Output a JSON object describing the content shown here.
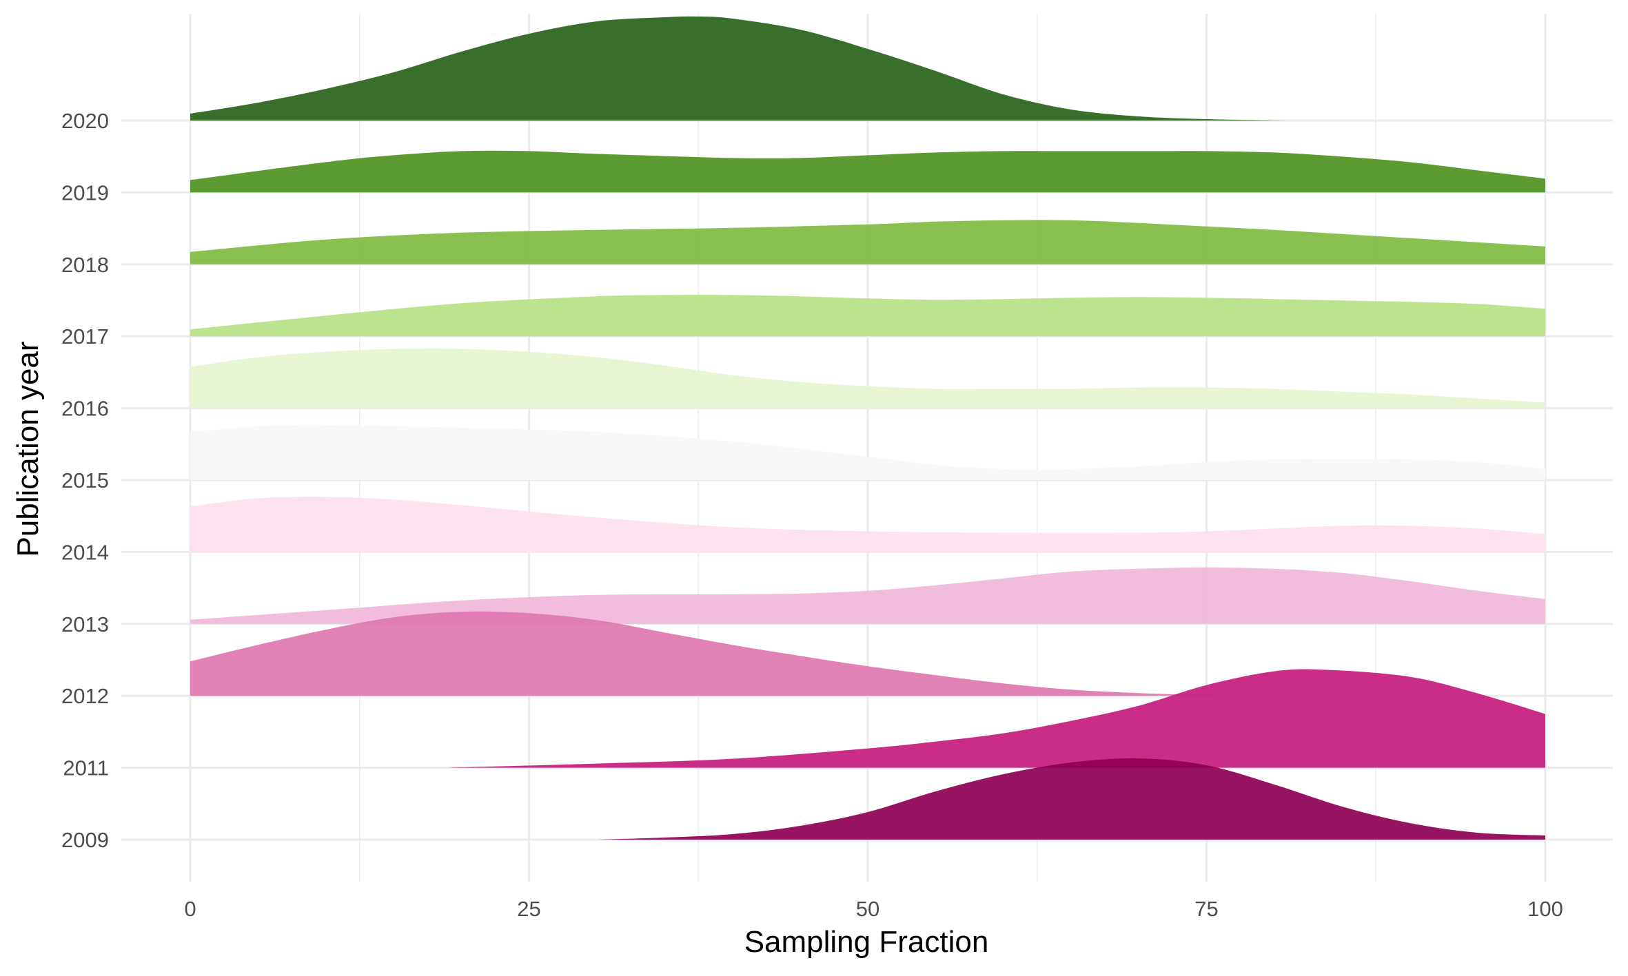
{
  "chart_data": {
    "type": "ridgeline",
    "title": "",
    "xlabel": "Sampling Fraction",
    "ylabel": "Publication year",
    "xlim": [
      -5,
      101
    ],
    "xticks": [
      0,
      25,
      50,
      75,
      100
    ],
    "xtick_labels": [
      "0",
      "25",
      "50",
      "75",
      "100"
    ],
    "x_minor_ticks": [
      12.5,
      37.5,
      62.5,
      87.5
    ],
    "grid": true,
    "legend": "none",
    "categories": [
      "2009",
      "2011",
      "2012",
      "2013",
      "2014",
      "2015",
      "2016",
      "2017",
      "2018",
      "2019",
      "2020"
    ],
    "series": [
      {
        "name": "2009",
        "color": "#8E0152",
        "x": [
          30,
          35,
          40,
          45,
          50,
          55,
          60,
          65,
          70,
          75,
          80,
          85,
          90,
          95,
          100
        ],
        "density": [
          0.0,
          0.03,
          0.08,
          0.2,
          0.4,
          0.7,
          0.95,
          1.12,
          1.18,
          1.08,
          0.8,
          0.48,
          0.24,
          0.1,
          0.06
        ]
      },
      {
        "name": "2011",
        "color": "#C51B7D",
        "x": [
          19,
          30,
          40,
          50,
          55,
          60,
          65,
          70,
          75,
          80,
          84,
          90,
          95,
          100
        ],
        "density": [
          0.0,
          0.06,
          0.13,
          0.28,
          0.38,
          0.5,
          0.68,
          0.9,
          1.2,
          1.4,
          1.42,
          1.32,
          1.08,
          0.78
        ]
      },
      {
        "name": "2012",
        "color": "#DE77AE",
        "x": [
          0,
          5,
          10,
          15,
          20,
          25,
          30,
          35,
          40,
          45,
          50,
          55,
          60,
          65,
          70,
          75,
          80,
          85,
          90,
          95,
          100
        ],
        "density": [
          0.5,
          0.74,
          0.96,
          1.14,
          1.22,
          1.2,
          1.1,
          0.92,
          0.74,
          0.58,
          0.43,
          0.3,
          0.18,
          0.09,
          0.04,
          0.01,
          0.0,
          0.0,
          0.0,
          0.0,
          0.0
        ]
      },
      {
        "name": "2013",
        "color": "#F1B6DA",
        "x": [
          0,
          10,
          20,
          30,
          40,
          45,
          50,
          55,
          60,
          65,
          70,
          75,
          80,
          85,
          90,
          95,
          100
        ],
        "density": [
          0.06,
          0.2,
          0.34,
          0.42,
          0.43,
          0.44,
          0.48,
          0.56,
          0.66,
          0.76,
          0.8,
          0.82,
          0.8,
          0.74,
          0.62,
          0.48,
          0.36
        ]
      },
      {
        "name": "2014",
        "color": "#FDE0EF",
        "x": [
          0,
          5,
          10,
          15,
          20,
          30,
          40,
          50,
          60,
          70,
          75,
          80,
          85,
          90,
          95,
          100
        ],
        "density": [
          0.66,
          0.78,
          0.8,
          0.76,
          0.68,
          0.5,
          0.36,
          0.3,
          0.28,
          0.28,
          0.3,
          0.34,
          0.38,
          0.38,
          0.34,
          0.26
        ]
      },
      {
        "name": "2015",
        "color": "#F7F7F7",
        "x": [
          0,
          5,
          10,
          20,
          30,
          40,
          50,
          55,
          60,
          65,
          70,
          75,
          80,
          85,
          90,
          95,
          100
        ],
        "density": [
          0.7,
          0.78,
          0.8,
          0.76,
          0.7,
          0.56,
          0.34,
          0.22,
          0.16,
          0.16,
          0.2,
          0.26,
          0.3,
          0.3,
          0.3,
          0.26,
          0.16
        ]
      },
      {
        "name": "2016",
        "color": "#E6F5D0",
        "x": [
          0,
          5,
          10,
          15,
          20,
          25,
          30,
          35,
          40,
          45,
          50,
          55,
          60,
          65,
          70,
          75,
          80,
          85,
          90,
          95,
          100
        ],
        "density": [
          0.6,
          0.74,
          0.82,
          0.86,
          0.86,
          0.82,
          0.74,
          0.62,
          0.48,
          0.38,
          0.32,
          0.28,
          0.28,
          0.28,
          0.3,
          0.3,
          0.28,
          0.24,
          0.2,
          0.14,
          0.08
        ]
      },
      {
        "name": "2017",
        "color": "#B8E186",
        "x": [
          0,
          10,
          20,
          30,
          35,
          40,
          45,
          50,
          55,
          60,
          65,
          70,
          75,
          80,
          85,
          90,
          95,
          100
        ],
        "density": [
          0.1,
          0.3,
          0.48,
          0.58,
          0.6,
          0.6,
          0.58,
          0.55,
          0.53,
          0.54,
          0.56,
          0.57,
          0.56,
          0.54,
          0.52,
          0.5,
          0.47,
          0.4
        ]
      },
      {
        "name": "2018",
        "color": "#7FBC41",
        "x": [
          0,
          10,
          20,
          30,
          40,
          50,
          55,
          60,
          65,
          70,
          75,
          80,
          85,
          90,
          95,
          100
        ],
        "density": [
          0.18,
          0.36,
          0.46,
          0.5,
          0.53,
          0.58,
          0.62,
          0.64,
          0.64,
          0.6,
          0.55,
          0.5,
          0.44,
          0.38,
          0.32,
          0.26
        ]
      },
      {
        "name": "2019",
        "color": "#4D9221",
        "x": [
          0,
          10,
          15,
          20,
          25,
          30,
          40,
          45,
          50,
          55,
          60,
          65,
          70,
          75,
          80,
          85,
          90,
          95,
          100
        ],
        "density": [
          0.18,
          0.44,
          0.54,
          0.6,
          0.6,
          0.56,
          0.5,
          0.5,
          0.54,
          0.58,
          0.6,
          0.6,
          0.6,
          0.6,
          0.58,
          0.52,
          0.44,
          0.32,
          0.2
        ]
      },
      {
        "name": "2020",
        "color": "#276419",
        "x": [
          0,
          5,
          10,
          15,
          20,
          25,
          30,
          35,
          37.5,
          40,
          45,
          50,
          55,
          60,
          65,
          70,
          75,
          81
        ],
        "density": [
          0.1,
          0.26,
          0.46,
          0.7,
          1.0,
          1.26,
          1.44,
          1.5,
          1.51,
          1.48,
          1.32,
          1.04,
          0.72,
          0.38,
          0.16,
          0.06,
          0.02,
          0.0
        ]
      }
    ]
  }
}
